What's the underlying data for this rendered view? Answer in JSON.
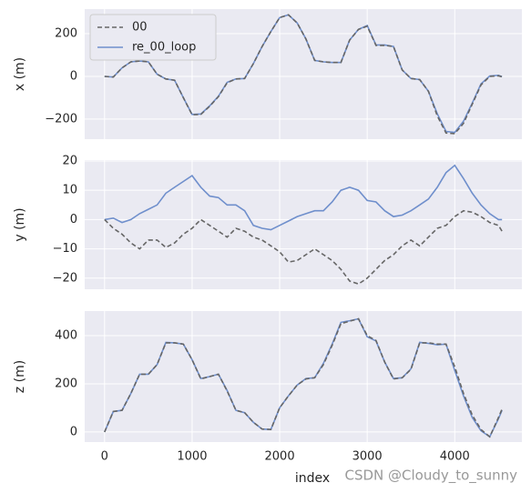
{
  "chart_data": [
    {
      "type": "line",
      "ylabel": "x (m)",
      "legend": "upper left",
      "x": [
        0,
        100,
        200,
        300,
        400,
        500,
        600,
        700,
        800,
        900,
        1000,
        1100,
        1200,
        1300,
        1400,
        1500,
        1600,
        1700,
        1800,
        1900,
        2000,
        2100,
        2200,
        2300,
        2400,
        2500,
        2600,
        2700,
        2800,
        2900,
        3000,
        3100,
        3200,
        3300,
        3400,
        3500,
        3600,
        3700,
        3800,
        3900,
        4000,
        4100,
        4200,
        4300,
        4400,
        4500,
        4540
      ],
      "series": [
        {
          "name": "00",
          "color": "#666666",
          "dash": true,
          "values": [
            0,
            -3,
            40,
            68,
            72,
            68,
            10,
            -12,
            -18,
            -100,
            -180,
            -178,
            -140,
            -95,
            -30,
            -12,
            -10,
            60,
            140,
            210,
            275,
            288,
            250,
            175,
            75,
            68,
            65,
            65,
            170,
            220,
            235,
            145,
            145,
            140,
            30,
            -10,
            -15,
            -70,
            -185,
            -265,
            -268,
            -220,
            -130,
            -40,
            0,
            3,
            -2
          ]
        },
        {
          "name": "re_00_loop",
          "color": "#6f8fcc",
          "dash": false,
          "values": [
            0,
            -3,
            40,
            68,
            72,
            68,
            10,
            -12,
            -18,
            -100,
            -178,
            -176,
            -138,
            -93,
            -28,
            -12,
            -10,
            60,
            140,
            210,
            275,
            288,
            250,
            175,
            75,
            68,
            65,
            65,
            170,
            220,
            238,
            147,
            147,
            140,
            30,
            -10,
            -15,
            -70,
            -175,
            -258,
            -262,
            -210,
            -125,
            -35,
            2,
            5,
            -1
          ]
        }
      ],
      "xlim": [
        -227,
        4767
      ],
      "ylim": [
        -294,
        315
      ],
      "yticks": [
        {
          "value": -200,
          "label": "−200"
        },
        0,
        200
      ]
    },
    {
      "type": "line",
      "ylabel": "y (m)",
      "x": [
        0,
        100,
        200,
        300,
        400,
        500,
        600,
        700,
        800,
        900,
        1000,
        1100,
        1200,
        1300,
        1400,
        1500,
        1600,
        1700,
        1800,
        1900,
        2000,
        2100,
        2200,
        2300,
        2400,
        2500,
        2600,
        2700,
        2800,
        2900,
        3000,
        3100,
        3200,
        3300,
        3400,
        3500,
        3600,
        3700,
        3800,
        3900,
        4000,
        4100,
        4200,
        4300,
        4400,
        4500,
        4540
      ],
      "series": [
        {
          "name": "00",
          "color": "#666666",
          "dash": true,
          "values": [
            0,
            -3,
            -5,
            -8,
            -10,
            -7,
            -7,
            -9.5,
            -8,
            -5,
            -3,
            0,
            -2,
            -4,
            -6,
            -3,
            -4,
            -6,
            -7,
            -9,
            -11,
            -14.5,
            -14,
            -12,
            -10,
            -12,
            -14,
            -17,
            -21,
            -22,
            -20,
            -17,
            -14,
            -12,
            -9,
            -7,
            -9,
            -6,
            -3,
            -2,
            1,
            3,
            2.5,
            1,
            -1,
            -2,
            -4
          ]
        },
        {
          "name": "re_00_loop",
          "color": "#6f8fcc",
          "dash": false,
          "values": [
            0,
            0.5,
            -1,
            0,
            2,
            3.5,
            5,
            9,
            11,
            13,
            15,
            11,
            8,
            7.5,
            5,
            5,
            3,
            -2,
            -3,
            -3.5,
            -2,
            -0.5,
            1,
            2,
            3,
            3,
            6,
            10,
            11,
            10,
            6.5,
            6,
            3,
            1,
            1.5,
            3,
            5,
            7,
            11,
            16,
            18.5,
            14,
            9,
            5,
            2,
            0,
            0
          ]
        }
      ],
      "xlim": [
        -227,
        4767
      ],
      "ylim": [
        -23.8,
        20.3
      ],
      "yticks": [
        {
          "value": -20,
          "label": "−20"
        },
        {
          "value": -10,
          "label": "−10"
        },
        0,
        10,
        20
      ]
    },
    {
      "type": "line",
      "ylabel": "z (m)",
      "xlabel": "index",
      "x": [
        0,
        100,
        200,
        300,
        400,
        500,
        600,
        700,
        800,
        900,
        1000,
        1100,
        1200,
        1300,
        1400,
        1500,
        1600,
        1700,
        1800,
        1900,
        2000,
        2100,
        2200,
        2300,
        2400,
        2500,
        2600,
        2700,
        2800,
        2900,
        3000,
        3100,
        3200,
        3300,
        3400,
        3500,
        3600,
        3700,
        3800,
        3900,
        4000,
        4100,
        4200,
        4300,
        4400,
        4500,
        4540
      ],
      "series": [
        {
          "name": "00",
          "color": "#666666",
          "dash": true,
          "values": [
            0,
            85,
            90,
            160,
            240,
            240,
            280,
            370,
            370,
            365,
            300,
            220,
            230,
            240,
            170,
            90,
            80,
            40,
            12,
            10,
            100,
            150,
            195,
            220,
            225,
            280,
            360,
            450,
            460,
            470,
            400,
            380,
            290,
            220,
            225,
            260,
            370,
            370,
            365,
            365,
            270,
            160,
            70,
            10,
            -20,
            60,
            95
          ]
        },
        {
          "name": "re_00_loop",
          "color": "#6f8fcc",
          "dash": false,
          "values": [
            0,
            85,
            90,
            160,
            240,
            240,
            280,
            372,
            370,
            365,
            300,
            222,
            230,
            240,
            172,
            90,
            80,
            40,
            12,
            10,
            100,
            150,
            195,
            222,
            225,
            285,
            365,
            455,
            462,
            470,
            395,
            378,
            290,
            222,
            225,
            262,
            372,
            368,
            362,
            365,
            255,
            150,
            60,
            5,
            -20,
            55,
            90
          ]
        }
      ],
      "xlim": [
        -227,
        4767
      ],
      "ylim": [
        -42,
        502
      ],
      "xticks": [
        0,
        1000,
        2000,
        3000,
        4000
      ],
      "yticks": [
        0,
        200,
        400
      ]
    }
  ],
  "watermark": "CSDN @Cloudy_to_sunny"
}
